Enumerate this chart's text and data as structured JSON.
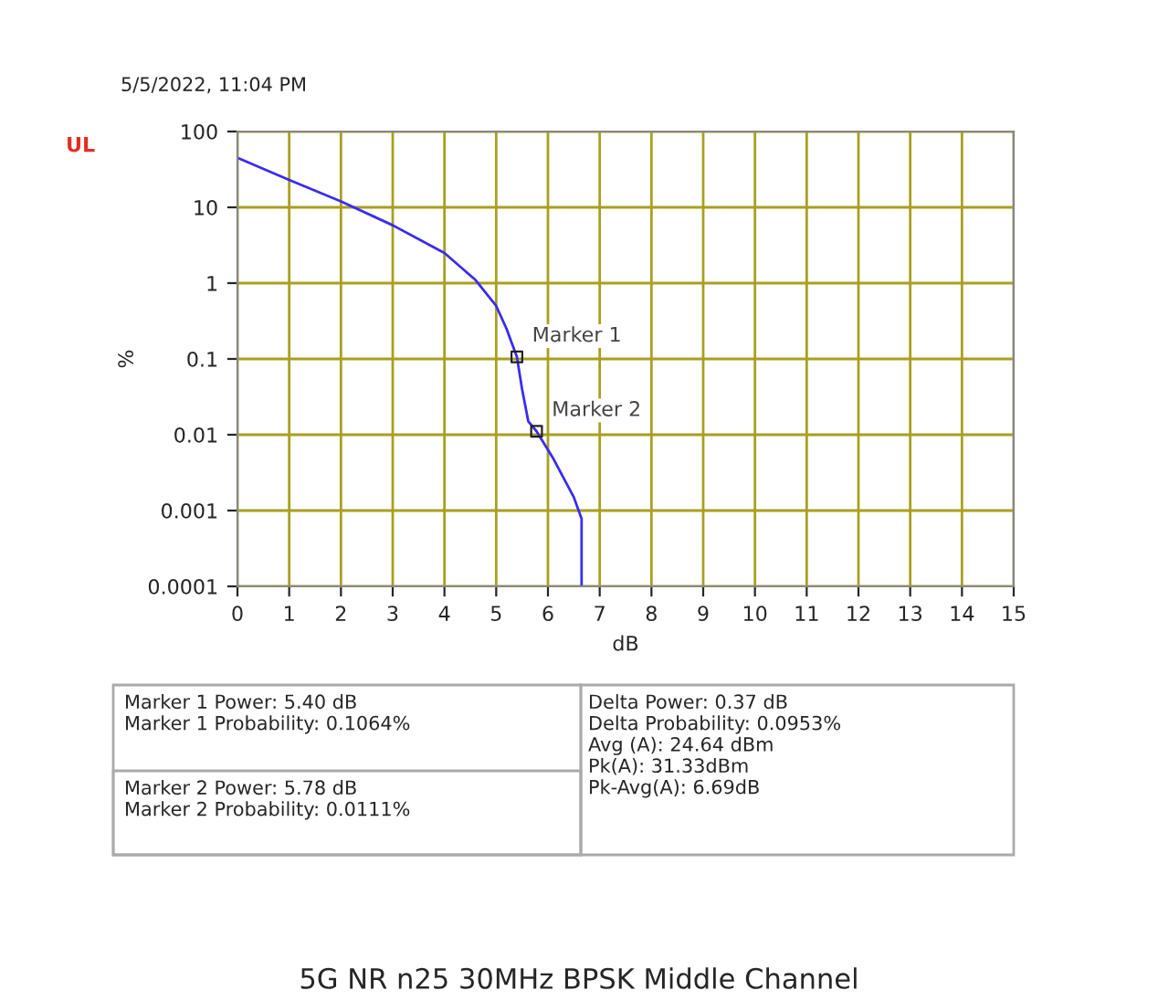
{
  "chart_data": {
    "type": "line",
    "title": "5G NR n25 30MHz BPSK Middle Channel",
    "xlabel": "dB",
    "ylabel": "%",
    "log": "y",
    "grid": true,
    "marker": "none",
    "line_style": "solid",
    "xlim": [
      0,
      15
    ],
    "xticks": [
      0,
      1,
      2,
      3,
      4,
      5,
      6,
      7,
      8,
      9,
      10,
      11,
      12,
      13,
      14,
      15
    ],
    "ylim": [
      0.0001,
      100
    ],
    "yticks": [
      0.0001,
      0.001,
      0.01,
      0.1,
      1,
      10,
      100
    ],
    "series": [
      {
        "color": "#3a2cf0",
        "x": [
          0,
          1,
          2,
          3,
          4,
          4.6,
          5,
          5.2,
          5.4,
          5.5,
          5.62,
          5.78,
          6.1,
          6.3,
          6.5,
          6.65,
          6.65
        ],
        "values": [
          45,
          23,
          12,
          5.8,
          2.5,
          1.1,
          0.5,
          0.25,
          0.1064,
          0.04,
          0.015,
          0.0111,
          0.0049,
          0.0027,
          0.0015,
          0.00078,
          0.0001
        ]
      },
      {
        "type": "scatter",
        "name": "Marker 1",
        "color": "#222222",
        "marker": "square",
        "x": [
          5.4
        ],
        "values": [
          0.1064
        ]
      },
      {
        "type": "scatter",
        "name": "Marker 2",
        "color": "#222222",
        "marker": "square",
        "x": [
          5.78
        ],
        "values": [
          0.0111
        ]
      }
    ],
    "annotations": [
      "5/5/2022, 11:04 PM",
      "UL",
      "Marker 1 Power: 5.40 dB\nMarker 1 Probability: 0.1064%",
      "Marker 2 Power: 5.78 dB\nMarker 2 Probability: 0.0111%",
      "Delta Power: 0.37 dB\nDelta Probability: 0.0953%\nAvg (A): 24.64 dBm\nPk(A): 31.33dBm\nPk-Avg(A): 6.69dB"
    ]
  }
}
